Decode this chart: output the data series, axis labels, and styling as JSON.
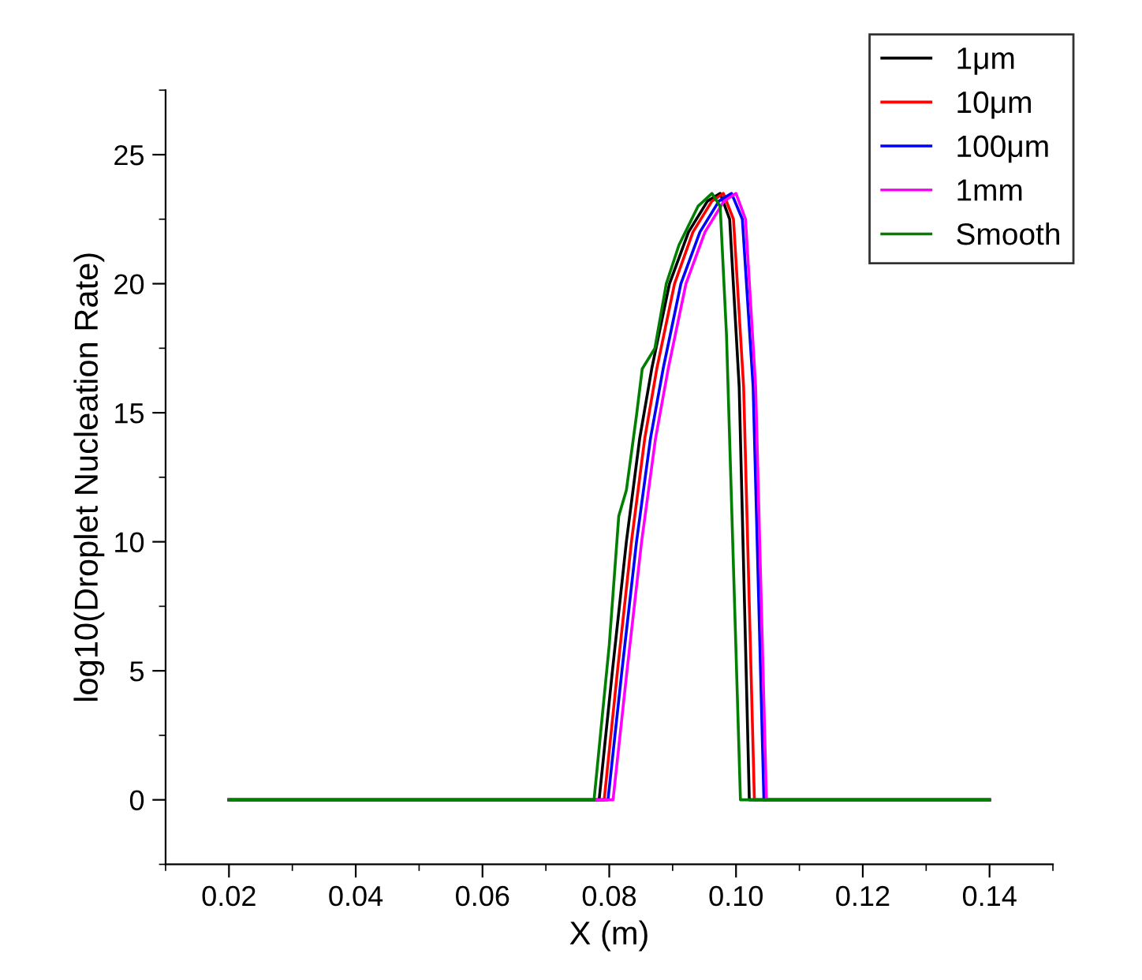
{
  "chart_data": {
    "type": "line",
    "xlabel": "X (m)",
    "ylabel": "log10(Droplet Nucleation Rate)",
    "xlim": [
      0.01,
      0.15
    ],
    "xticks": [
      {
        "value": 0.02,
        "label": "0.02"
      },
      {
        "value": 0.04,
        "label": "0.04"
      },
      {
        "value": 0.06,
        "label": "0.06"
      },
      {
        "value": 0.08,
        "label": "0.08"
      },
      {
        "value": 0.1,
        "label": "0.10"
      },
      {
        "value": 0.12,
        "label": "0.12"
      },
      {
        "value": 0.14,
        "label": "0.14"
      }
    ],
    "ylim": [
      -2.5,
      27.5
    ],
    "yticks": [
      0,
      5,
      10,
      15,
      20,
      25
    ],
    "grid": false,
    "legend": "top right",
    "marker": "none",
    "line_style": "solid",
    "series": [
      {
        "name": "1μm",
        "color": "#000000",
        "x": [
          0.02,
          0.0784,
          0.0805,
          0.0827,
          0.0848,
          0.0867,
          0.0895,
          0.0925,
          0.0955,
          0.0975,
          0.099,
          0.1005,
          0.1021,
          0.14
        ],
        "values": [
          0,
          0,
          5,
          10,
          14,
          16.7,
          20,
          22,
          23.2,
          23.5,
          22.5,
          16,
          0,
          0
        ]
      },
      {
        "name": "10μm",
        "color": "#ff0000",
        "x": [
          0.02,
          0.0792,
          0.0813,
          0.0835,
          0.0856,
          0.0875,
          0.0903,
          0.0932,
          0.0962,
          0.098,
          0.0996,
          0.1012,
          0.1029,
          0.14
        ],
        "values": [
          0,
          0,
          5,
          10,
          14,
          16.7,
          20,
          22,
          23.2,
          23.5,
          22.5,
          16,
          0,
          0
        ]
      },
      {
        "name": "100μm",
        "color": "#0000ff",
        "x": [
          0.02,
          0.0798,
          0.082,
          0.0843,
          0.0865,
          0.0885,
          0.0913,
          0.0943,
          0.0973,
          0.0993,
          0.101,
          0.1027,
          0.1044,
          0.14
        ],
        "values": [
          0,
          0,
          5,
          10,
          14,
          16.7,
          20,
          22,
          23.2,
          23.5,
          22.5,
          16,
          0,
          0
        ]
      },
      {
        "name": "1mm",
        "color": "#ff00ff",
        "x": [
          0.02,
          0.0806,
          0.0828,
          0.0851,
          0.0873,
          0.0893,
          0.0921,
          0.0951,
          0.0981,
          0.1,
          0.1015,
          0.1031,
          0.1048,
          0.14
        ],
        "values": [
          0,
          0,
          5,
          10,
          14,
          16.7,
          20,
          22,
          23.2,
          23.5,
          22.5,
          16,
          0,
          0
        ]
      },
      {
        "name": "Smooth",
        "color": "#007f00",
        "x": [
          0.02,
          0.0776,
          0.08,
          0.0815,
          0.0827,
          0.0843,
          0.0852,
          0.0872,
          0.089,
          0.091,
          0.094,
          0.0962,
          0.0975,
          0.0985,
          0.1007,
          0.14
        ],
        "values": [
          0,
          0,
          6,
          11,
          12,
          14.9,
          16.7,
          17.5,
          20,
          21.5,
          23,
          23.5,
          23,
          18,
          0,
          0
        ]
      }
    ]
  }
}
